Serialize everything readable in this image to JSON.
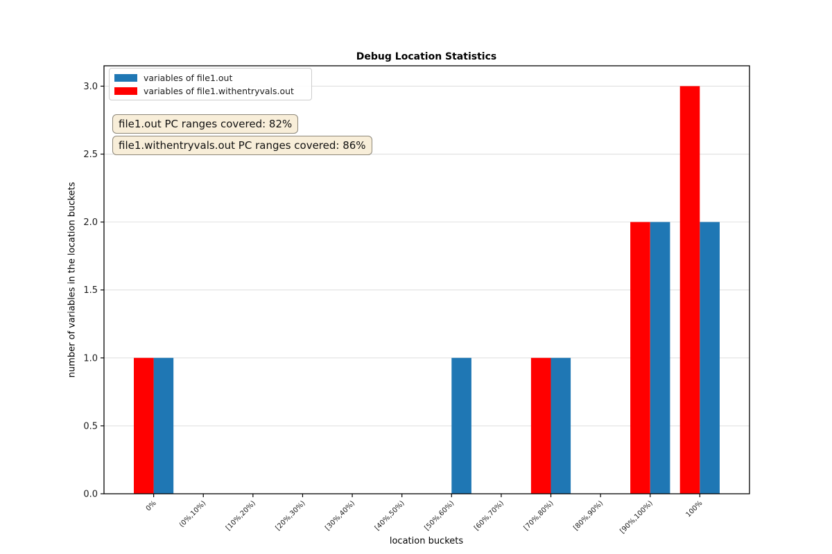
{
  "title": "Debug Location Statistics",
  "legend": {
    "items": [
      {
        "label": "variables of file1.out",
        "color": "#1f77b4"
      },
      {
        "label": "variables of file1.withentryvals.out",
        "color": "#ff0000"
      }
    ]
  },
  "annotations": [
    {
      "text": "file1.out PC ranges covered: 82%"
    },
    {
      "text": "file1.withentryvals.out PC ranges covered: 86%"
    }
  ],
  "colors": {
    "blue": "#1f77b4",
    "red": "#ff0000",
    "grid": "#e0e0e0",
    "spine": "#000000",
    "tick_text": "#1a1a1a",
    "annotation_bg": "#f8eed9",
    "annotation_border": "#8c8678",
    "legend_border": "#cccccc"
  },
  "chart_data": {
    "type": "bar",
    "title": "Debug Location Statistics",
    "xlabel": "location buckets",
    "ylabel": "number of variables in the location buckets",
    "categories": [
      "0%",
      "(0%,10%)",
      "[10%,20%)",
      "[20%,30%)",
      "[30%,40%)",
      "[40%,50%)",
      "[50%,60%)",
      "[60%,70%)",
      "[70%,80%)",
      "[80%,90%)",
      "[90%,100%)",
      "100%"
    ],
    "series": [
      {
        "name": "variables of file1.out",
        "color": "#1f77b4",
        "offset": 0.2,
        "values": [
          1,
          0,
          0,
          0,
          0,
          0,
          1,
          0,
          1,
          0,
          2,
          2
        ]
      },
      {
        "name": "variables of file1.withentryvals.out",
        "color": "#ff0000",
        "offset": -0.2,
        "values": [
          1,
          0,
          0,
          0,
          0,
          0,
          0,
          0,
          1,
          0,
          2,
          3
        ]
      }
    ],
    "bar_width": 0.4,
    "xlim": [
      -1,
      12
    ],
    "ylim": [
      0,
      3.15
    ],
    "yticks": [
      0.0,
      0.5,
      1.0,
      1.5,
      2.0,
      2.5,
      3.0
    ],
    "grid": "horizontal-only",
    "legend_position": "upper left",
    "annotation_texts": [
      "file1.out PC ranges covered: 82%",
      "file1.withentryvals.out PC ranges covered: 86%"
    ]
  }
}
